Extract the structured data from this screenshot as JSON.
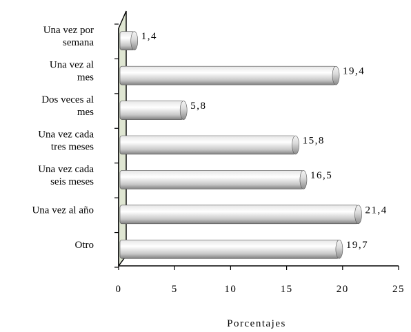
{
  "chart_data": {
    "type": "bar",
    "orientation": "horizontal",
    "categories": [
      "Una vez por\nsemana",
      "Una vez al\nmes",
      "Dos veces al\nmes",
      "Una vez cada\ntres meses",
      "Una vez cada\nseis meses",
      "Una vez al año",
      "Otro"
    ],
    "values": [
      1.4,
      19.4,
      5.8,
      15.8,
      16.5,
      21.4,
      19.7
    ],
    "data_labels": [
      "1,4",
      "19,4",
      "5,8",
      "15,8",
      "16,5",
      "21,4",
      "19,7"
    ],
    "xlabel": "Porcentajes",
    "xlim": [
      0,
      25
    ],
    "xticks": [
      0,
      5,
      10,
      15,
      20,
      25
    ],
    "grid": false,
    "colors": {
      "bar_light": "#ffffff",
      "bar_mid": "#c8c8c8",
      "bar_dark": "#808080",
      "wall": "#dfe6d2"
    }
  }
}
